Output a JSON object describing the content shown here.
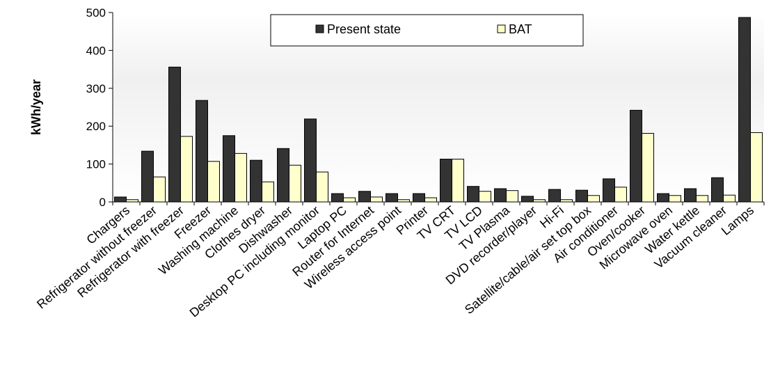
{
  "chart_data": {
    "type": "bar",
    "title": "",
    "xlabel": "",
    "ylabel": "kWh/year",
    "ylim": [
      0,
      500
    ],
    "yticks": [
      "0",
      "100",
      "200",
      "300",
      "400",
      "500"
    ],
    "grid": false,
    "legend_position": "top-center",
    "categories": [
      "Chargers",
      "Refrigerator without freezer",
      "Refrigerator with freezer",
      "Freezer",
      "Washing machine",
      "Clothes dryer",
      "Dishwasher",
      "Desktop PC including monitor",
      "Laptop PC",
      "Router for Internet",
      "Wireless access point",
      "Printer",
      "TV CRT",
      "TV LCD",
      "TV Plasma",
      "DVD recorder/player",
      "Hi-Fi",
      "Satellite/cable/air set top box",
      "Air conditioner",
      "Oven/cooker",
      "Microwave oven",
      "Water kettle",
      "Vacuum cleaner",
      "Lamps"
    ],
    "series": [
      {
        "name": "Present state",
        "color": "#333333",
        "values": [
          13,
          134,
          356,
          268,
          175,
          110,
          141,
          219,
          22,
          28,
          22,
          22,
          113,
          41,
          35,
          15,
          33,
          31,
          61,
          242,
          22,
          35,
          64,
          487
        ]
      },
      {
        "name": "BAT",
        "color": "#ffffcc",
        "values": [
          6,
          66,
          173,
          107,
          128,
          53,
          97,
          79,
          11,
          13,
          6,
          11,
          113,
          28,
          30,
          6,
          6,
          17,
          39,
          181,
          17,
          17,
          18,
          183
        ]
      }
    ]
  }
}
